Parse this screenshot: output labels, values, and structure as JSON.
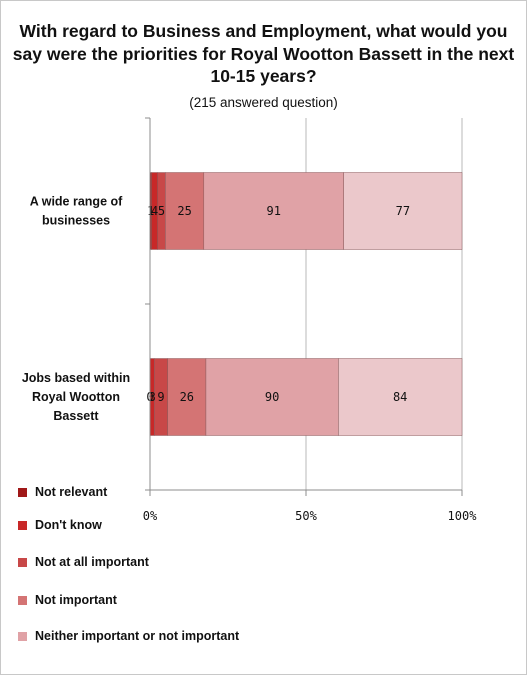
{
  "chart_data": {
    "type": "bar",
    "orientation": "horizontal",
    "stacked": "percent",
    "title": "With regard to Business and Employment, what would you say were the priorities for Royal Wootton Bassett in the next 10-15 years?",
    "subtitle": "(215 answered question)",
    "categories": [
      "A wide range of businesses",
      "Jobs based within Royal Wootton Bassett"
    ],
    "category_lines": [
      [
        "A wide range of",
        "businesses"
      ],
      [
        "Jobs based within",
        "Royal Wootton",
        "Bassett"
      ]
    ],
    "series": [
      {
        "name": "Not relevant",
        "values": [
          1,
          0
        ],
        "color": "#a01818"
      },
      {
        "name": "Don't know",
        "values": [
          4,
          3
        ],
        "color": "#c82828"
      },
      {
        "name": "Not at all important",
        "values": [
          5,
          9
        ],
        "color": "#c84848"
      },
      {
        "name": "Not important",
        "values": [
          25,
          26
        ],
        "color": "#d47474"
      },
      {
        "name": "Neither important or not important",
        "values": [
          91,
          90
        ],
        "color": "#e0a2a6"
      },
      {
        "name": "",
        "values": [
          77,
          84
        ],
        "color": "#ebc8cb"
      }
    ],
    "point_labels": [
      [
        "1",
        "4",
        "5",
        "25",
        "91",
        "77"
      ],
      [
        "0",
        "3",
        "9",
        "26",
        "90",
        "84"
      ]
    ],
    "xlim": [
      0,
      100
    ],
    "x_ticks": [
      "0%",
      "50%",
      "100%"
    ],
    "grid": true,
    "legend_position": "bottom-left"
  }
}
